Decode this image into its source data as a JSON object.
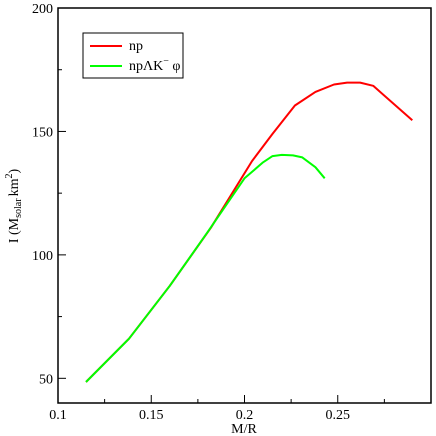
{
  "chart_data": {
    "type": "line",
    "xlabel": "M/R",
    "ylabel": {
      "main": "I (M",
      "sub1": "solar",
      "mid": "km",
      "sup": "2",
      "end": ")"
    },
    "xlim": [
      0.1,
      0.3
    ],
    "ylim": [
      40,
      200
    ],
    "xticks": [
      0.1,
      0.15,
      0.2,
      0.25
    ],
    "xtick_labels": [
      "0.1",
      "0.15",
      "0.2",
      "0.25"
    ],
    "yticks": [
      50,
      100,
      150,
      200
    ],
    "ytick_labels": [
      "50",
      "100",
      "150",
      "200"
    ],
    "grid": false,
    "legend_position": "top-left",
    "series": [
      {
        "name": "np",
        "color": "#ff0000",
        "x": [
          0.115,
          0.138,
          0.16,
          0.182,
          0.204,
          0.215,
          0.227,
          0.238,
          0.248,
          0.255,
          0.262,
          0.269,
          0.29
        ],
        "y": [
          48.5,
          66,
          87.5,
          111,
          138,
          149,
          160.5,
          166,
          169,
          169.8,
          169.8,
          168.5,
          154.5
        ]
      },
      {
        "name": "npΛK⁻φ",
        "color": "#00ff00",
        "x": [
          0.115,
          0.138,
          0.16,
          0.18,
          0.2,
          0.21,
          0.215,
          0.22,
          0.226,
          0.231,
          0.238,
          0.243
        ],
        "y": [
          48.5,
          66,
          87.5,
          109,
          131,
          137.5,
          140,
          140.5,
          140.3,
          139.5,
          135.5,
          131
        ]
      }
    ],
    "legend": {
      "np": "np",
      "np_lk_phi": {
        "base": "npΛK",
        "sup": "−",
        "end": " φ"
      }
    }
  }
}
